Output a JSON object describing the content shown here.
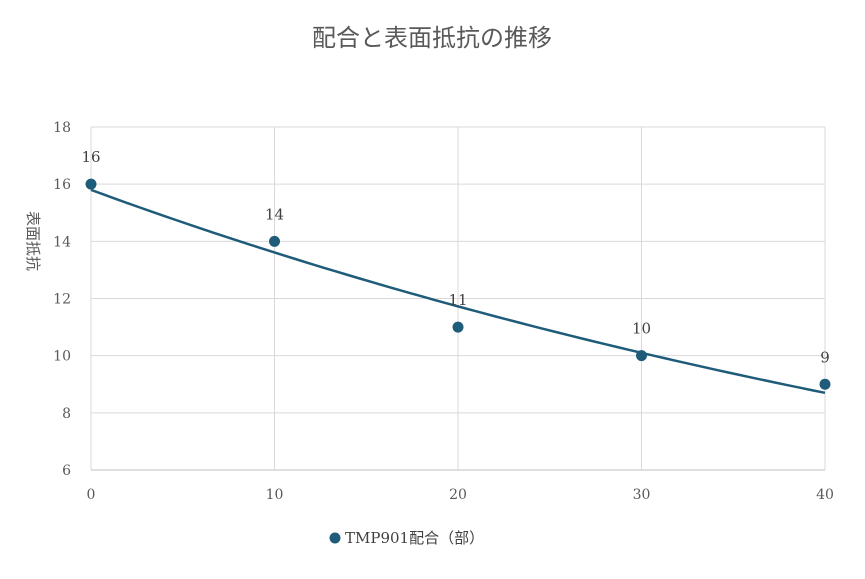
{
  "chart_data": {
    "type": "scatter",
    "title": "配合と表面抵抗の推移",
    "xlabel": "",
    "ylabel": "表面抵抗",
    "xlim": [
      0,
      40
    ],
    "ylim": [
      6,
      18
    ],
    "x_ticks": [
      0,
      10,
      20,
      30,
      40
    ],
    "y_ticks": [
      6,
      8,
      10,
      12,
      14,
      16,
      18
    ],
    "grid": true,
    "legend_position": "bottom",
    "series": [
      {
        "name": "TMP901配合（部）",
        "x": [
          0,
          10,
          20,
          30,
          40
        ],
        "y": [
          16,
          14,
          11,
          10,
          9
        ],
        "data_labels": [
          "16",
          "14",
          "11",
          "10",
          "9"
        ],
        "color": "#1f5c7a"
      }
    ],
    "trendline": {
      "type": "exponential",
      "y_start": 15.8,
      "y_end": 8.7,
      "color": "#1f5c7a"
    },
    "grid_color": "#d9d9d9",
    "axis_color": "#bfbfbf"
  }
}
